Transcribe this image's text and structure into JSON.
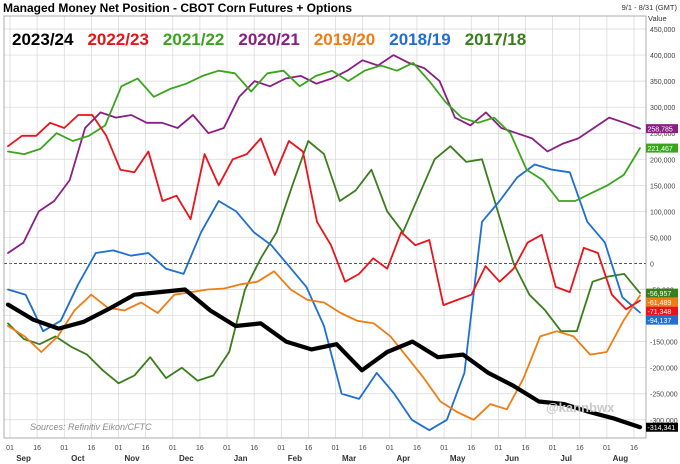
{
  "chart_data": {
    "type": "line",
    "title": "Managed Money Net Position - CBOT Corn Futures + Options",
    "date_range": "9/1 - 8/31 (GMT)",
    "axis_label": "Value",
    "source": "Sources: Refinitiv Eikon/CFTC",
    "watermark": "@kannbwx",
    "ylim": [
      -335000,
      475000
    ],
    "y_ticks": [
      450000,
      400000,
      350000,
      300000,
      250000,
      200000,
      150000,
      100000,
      50000,
      0,
      -50000,
      -100000,
      -150000,
      -200000,
      -250000,
      -300000
    ],
    "y_tick_labels": [
      "450,000",
      "400,000",
      "350,000",
      "300,000",
      "250,000",
      "200,000",
      "150,000",
      "100,000",
      "50,000",
      "0",
      "-50,000",
      "-100,000",
      "-150,000",
      "-200,000",
      "-250,000",
      "-300,000"
    ],
    "x_day_labels": [
      "01",
      "16",
      "01",
      "16",
      "01",
      "16",
      "01",
      "16",
      "01",
      "16",
      "01",
      "16",
      "01",
      "16",
      "01",
      "16",
      "01",
      "16",
      "01",
      "16",
      "01",
      "16",
      "01",
      "16"
    ],
    "x_month_labels": [
      "Sep",
      "Oct",
      "Nov",
      "Dec",
      "Jan",
      "Feb",
      "Mar",
      "Apr",
      "May",
      "Jun",
      "Jul",
      "Aug"
    ],
    "series": [
      {
        "name": "2023/24",
        "color": "#000000",
        "width": 4.2,
        "y": [
          -79000,
          -108000,
          -125000,
          -112000,
          -87000,
          -60000,
          -55000,
          -50000,
          -90000,
          -120000,
          -115000,
          -150000,
          -165000,
          -155000,
          -205000,
          -170000,
          -150000,
          -180000,
          -175000,
          -210000,
          -235000,
          -265000,
          -270000,
          -285000,
          -298000,
          -314341
        ]
      },
      {
        "name": "2022/23",
        "color": "#e8141a",
        "width": 1.8,
        "y": [
          225000,
          245000,
          245000,
          270000,
          260000,
          285000,
          285000,
          245000,
          180000,
          175000,
          215000,
          120000,
          130000,
          85000,
          210000,
          150000,
          200000,
          210000,
          240000,
          170000,
          235000,
          215000,
          80000,
          35000,
          -35000,
          -20000,
          10000,
          -10000,
          60000,
          35000,
          45000,
          -80000,
          -70000,
          -60000,
          -5000,
          -35000,
          -10000,
          40000,
          55000,
          -45000,
          -55000,
          30000,
          20000,
          -60000,
          -88000,
          -71348
        ]
      },
      {
        "name": "2021/22",
        "color": "#3aa51c",
        "width": 1.8,
        "y": [
          215000,
          210000,
          220000,
          250000,
          235000,
          245000,
          265000,
          340000,
          355000,
          320000,
          335000,
          345000,
          360000,
          370000,
          365000,
          330000,
          365000,
          370000,
          340000,
          360000,
          370000,
          350000,
          370000,
          380000,
          370000,
          385000,
          350000,
          310000,
          280000,
          270000,
          280000,
          250000,
          180000,
          160000,
          120000,
          120000,
          135000,
          150000,
          170000,
          221467
        ]
      },
      {
        "name": "2020/21",
        "color": "#8a1e85",
        "width": 1.8,
        "y": [
          20000,
          40000,
          100000,
          120000,
          160000,
          260000,
          290000,
          280000,
          285000,
          270000,
          270000,
          260000,
          285000,
          250000,
          260000,
          320000,
          350000,
          340000,
          355000,
          360000,
          345000,
          355000,
          370000,
          390000,
          380000,
          400000,
          385000,
          375000,
          350000,
          280000,
          265000,
          290000,
          260000,
          250000,
          240000,
          215000,
          230000,
          240000,
          260000,
          280000,
          270000,
          258785
        ]
      },
      {
        "name": "2019/20",
        "color": "#f07c13",
        "width": 1.8,
        "y": [
          -120000,
          -140000,
          -170000,
          -140000,
          -90000,
          -60000,
          -85000,
          -90000,
          -75000,
          -95000,
          -60000,
          -55000,
          -50000,
          -48000,
          -40000,
          -35000,
          -15000,
          -50000,
          -70000,
          -75000,
          -95000,
          -110000,
          -115000,
          -140000,
          -180000,
          -220000,
          -265000,
          -285000,
          -300000,
          -270000,
          -280000,
          -220000,
          -140000,
          -130000,
          -140000,
          -175000,
          -170000,
          -110000,
          -61489
        ]
      },
      {
        "name": "2018/19",
        "color": "#1e6fd1",
        "width": 1.8,
        "y": [
          -50000,
          -60000,
          -130000,
          -110000,
          -40000,
          20000,
          25000,
          15000,
          20000,
          -10000,
          -20000,
          60000,
          120000,
          100000,
          60000,
          35000,
          -5000,
          -45000,
          -120000,
          -250000,
          -260000,
          -210000,
          -250000,
          -300000,
          -320000,
          -300000,
          -210000,
          80000,
          120000,
          165000,
          190000,
          180000,
          175000,
          80000,
          40000,
          -65000,
          -94137
        ]
      },
      {
        "name": "2017/18",
        "color": "#3a7d1c",
        "width": 1.8,
        "y": [
          -115000,
          -145000,
          -155000,
          -140000,
          -160000,
          -175000,
          -205000,
          -230000,
          -215000,
          -180000,
          -220000,
          -200000,
          -225000,
          -215000,
          -170000,
          -50000,
          10000,
          60000,
          150000,
          235000,
          210000,
          120000,
          140000,
          180000,
          100000,
          60000,
          130000,
          200000,
          225000,
          195000,
          200000,
          100000,
          0,
          -60000,
          -90000,
          -130000,
          -130000,
          -35000,
          -25000,
          -20000,
          -56957
        ]
      }
    ],
    "last_values": [
      {
        "series": "2020/21",
        "value": 258785,
        "label": "258,785",
        "color": "#8a1e85"
      },
      {
        "series": "2021/22",
        "value": 221467,
        "label": "221,467",
        "color": "#3aa51c"
      },
      {
        "series": "2017/18",
        "value": -56957,
        "label": "-56,957",
        "color": "#3a7d1c"
      },
      {
        "series": "2019/20",
        "value": -61489,
        "label": "-61,489",
        "color": "#f07c13"
      },
      {
        "series": "2022/23",
        "value": -71348,
        "label": "-71,348",
        "color": "#e8141a"
      },
      {
        "series": "2018/19",
        "value": -94137,
        "label": "-94,137",
        "color": "#1e6fd1"
      },
      {
        "series": "2023/24",
        "value": -314341,
        "label": "-314,341",
        "color": "#000000"
      }
    ]
  }
}
